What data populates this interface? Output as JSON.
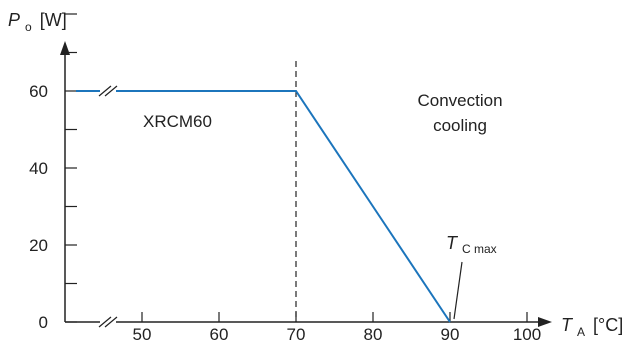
{
  "chart_data": {
    "type": "line",
    "ylabel": {
      "symbol": "P",
      "subscript": "o",
      "unit": "[W]"
    },
    "xlabel": {
      "symbol": "T",
      "subscript": "A",
      "unit": "[°C]"
    },
    "xlim": [
      40,
      100
    ],
    "ylim": [
      0,
      80
    ],
    "xticks": [
      50,
      60,
      70,
      80,
      90,
      100
    ],
    "yticks": [
      0,
      20,
      40,
      60
    ],
    "y_minor_step": 10,
    "axis_break_marks": "//",
    "colors": {
      "series": "#1c75bc",
      "axis": "#222222"
    },
    "series": [
      {
        "name": "XRCM60",
        "x": [
          40,
          70,
          90
        ],
        "y": [
          60,
          60,
          0
        ]
      }
    ],
    "reference_lines": [
      {
        "axis": "x",
        "value": 70,
        "style": "dashed"
      }
    ],
    "annotations": [
      {
        "lines": [
          "Convection",
          "cooling"
        ],
        "region": "right of 70 °C"
      },
      {
        "symbol": "T",
        "subscript": "C max",
        "points_to": {
          "x": 90,
          "y": 0
        }
      }
    ]
  }
}
